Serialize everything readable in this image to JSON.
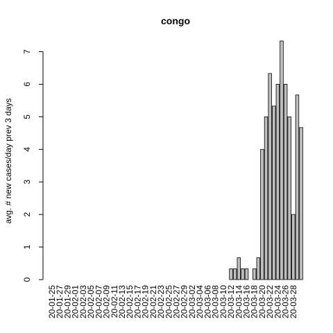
{
  "chart_data": {
    "type": "bar",
    "title": "congo",
    "ylabel": "avg. # new cases/day prev  3  days",
    "color": "#bebebe",
    "categories": [
      "20-01-25",
      null,
      "20-01-27",
      null,
      "20-01-29",
      null,
      "20-02-01",
      null,
      "20-02-03",
      null,
      "20-02-05",
      null,
      "20-02-07",
      null,
      "20-02-09",
      null,
      "20-02-11",
      null,
      "20-02-13",
      null,
      "20-02-15",
      null,
      "20-02-17",
      null,
      "20-02-19",
      null,
      "20-02-21",
      null,
      "20-02-23",
      null,
      "20-02-25",
      null,
      "20-02-27",
      null,
      "20-02-29",
      null,
      "20-03-02",
      null,
      "20-03-04",
      null,
      "20-03-06",
      null,
      "20-03-08",
      null,
      "20-03-10",
      null,
      "20-03-12",
      null,
      "20-03-14",
      null,
      "20-03-16",
      null,
      "20-03-18",
      null,
      "20-03-20",
      null,
      "20-03-22",
      null,
      "20-03-24",
      null,
      "20-03-26",
      null,
      "20-03-28",
      null,
      null
    ],
    "values": [
      0,
      0,
      0,
      0,
      0,
      0,
      0,
      0,
      0,
      0,
      0,
      0,
      0,
      0,
      0,
      0,
      0,
      0,
      0,
      0,
      0,
      0,
      0,
      0,
      0,
      0,
      0,
      0,
      0,
      0,
      0,
      0,
      0,
      0,
      0,
      0,
      0,
      0,
      0,
      0,
      0,
      0,
      0,
      0,
      0,
      0,
      0.33,
      0.33,
      0.67,
      0.33,
      0.33,
      0,
      0.33,
      0.67,
      4,
      5,
      6.33,
      5.33,
      6,
      7.33,
      6,
      5,
      2,
      5.67,
      4.67
    ],
    "ylim": [
      0,
      7.33
    ],
    "yticks": [
      0,
      1,
      2,
      3,
      4,
      5,
      6,
      7
    ]
  }
}
